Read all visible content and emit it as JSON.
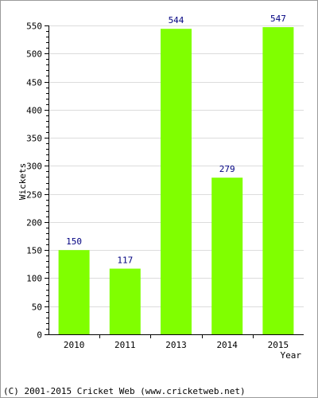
{
  "chart_data": {
    "type": "bar",
    "categories": [
      "2010",
      "2011",
      "2013",
      "2014",
      "2015"
    ],
    "values": [
      150,
      117,
      544,
      279,
      547
    ],
    "data_labels": [
      "150",
      "117",
      "544",
      "279",
      "547"
    ],
    "title": "",
    "xlabel": "Year",
    "ylabel": "Wickets",
    "ylim": [
      0,
      550
    ],
    "yticks": [
      "0",
      "50",
      "100",
      "150",
      "200",
      "250",
      "300",
      "350",
      "400",
      "450",
      "500",
      "550"
    ],
    "grid": true,
    "legend": "none",
    "bar_color": "#80ff00",
    "value_label_color": "#000080",
    "grid_color": "#dcdcdc"
  },
  "footer": {
    "credit": "(C) 2001-2015 Cricket Web (www.cricketweb.net)"
  }
}
